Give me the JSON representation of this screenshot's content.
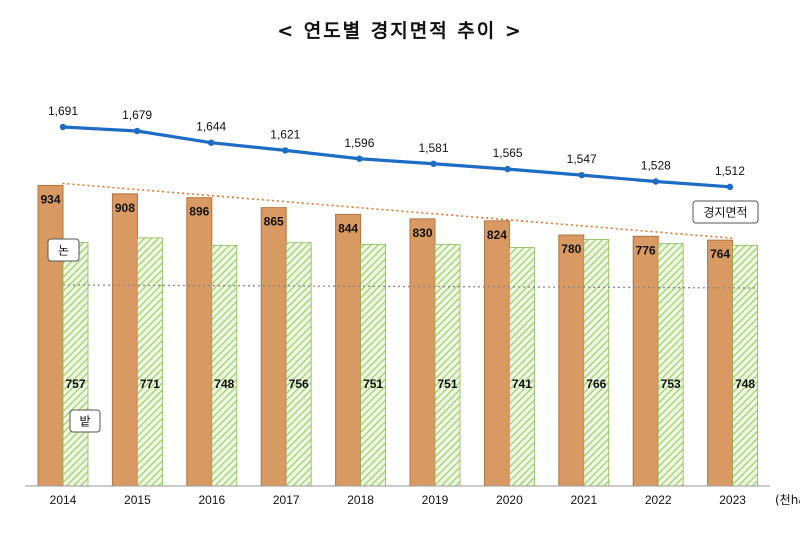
{
  "chart_data": {
    "type": "bar",
    "title": "< 연도별 경지면적 추이 >",
    "unit": "(천ha)",
    "categories": [
      "2014",
      "2015",
      "2016",
      "2017",
      "2018",
      "2019",
      "2020",
      "2021",
      "2022",
      "2023"
    ],
    "series": [
      {
        "name": "논",
        "kind": "bar",
        "color": "#d89a62",
        "values": [
          934,
          908,
          896,
          865,
          844,
          830,
          824,
          780,
          776,
          764
        ]
      },
      {
        "name": "밭",
        "kind": "bar",
        "color": "#a9d27a",
        "pattern": "hatched",
        "values": [
          757,
          771,
          748,
          756,
          751,
          751,
          741,
          766,
          753,
          748
        ]
      },
      {
        "name": "경지면적",
        "kind": "line",
        "color": "#1f6cc4",
        "values": [
          1691,
          1679,
          1644,
          1621,
          1596,
          1581,
          1565,
          1547,
          1528,
          1512
        ]
      }
    ],
    "value_labels": {
      "total": [
        "1,691",
        "1,679",
        "1,644",
        "1,621",
        "1,596",
        "1,581",
        "1,565",
        "1,547",
        "1,528",
        "1,512"
      ],
      "paddy": [
        "934",
        "908",
        "896",
        "865",
        "844",
        "830",
        "824",
        "780",
        "776",
        "764"
      ],
      "field": [
        "757",
        "771",
        "748",
        "756",
        "751",
        "751",
        "741",
        "766",
        "753",
        "748"
      ]
    },
    "trend_lines": [
      {
        "series": "논",
        "style": "dotted",
        "color": "#e2762a"
      },
      {
        "series": "밭",
        "style": "dotted",
        "color": "#888888"
      }
    ],
    "colors": {
      "paddy_stroke": "#b2743f",
      "field_stroke": "#8bb85e",
      "axis": "#999999"
    }
  }
}
